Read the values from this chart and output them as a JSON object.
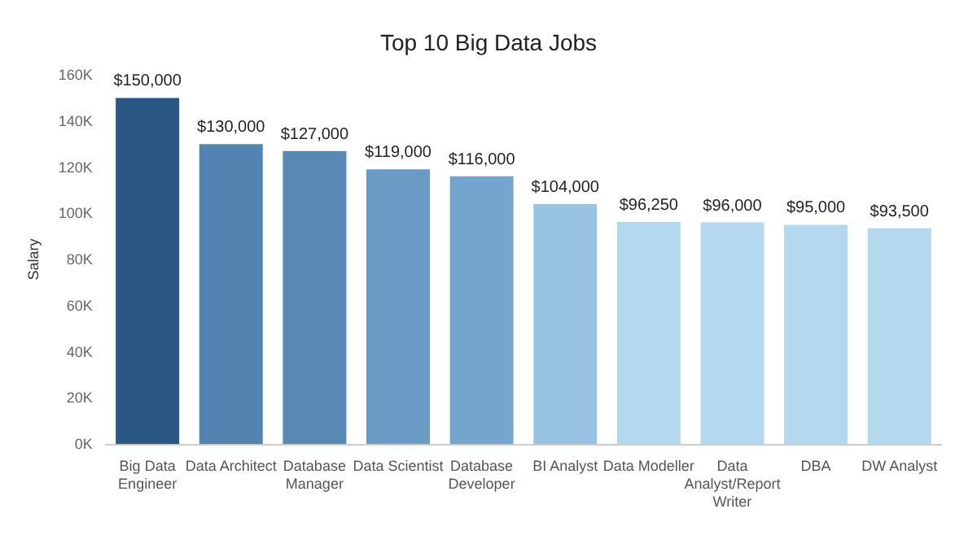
{
  "chart_data": {
    "type": "bar",
    "title": "Top 10 Big Data Jobs",
    "ylabel": "Salary",
    "categories": [
      "Big Data\nEngineer",
      "Data Architect",
      "Database\nManager",
      "Data Scientist",
      "Database\nDeveloper",
      "BI Analyst",
      "Data Modeller",
      "Data\nAnalyst/Report\nWriter",
      "DBA",
      "DW Analyst"
    ],
    "values": [
      150000,
      130000,
      127000,
      119000,
      116000,
      104000,
      96250,
      96000,
      95000,
      93500
    ],
    "colors": [
      "#2a5783",
      "#5383b0",
      "#5889b5",
      "#6a9bc5",
      "#73a5cd",
      "#99c3e2",
      "#b4d8ee",
      "#b4d8ee",
      "#b4d8ee",
      "#b4d8ee"
    ],
    "value_labels": [
      "$150,000",
      "$130,000",
      "$127,000",
      "$119,000",
      "$116,000",
      "$104,000",
      "$96,250",
      "$96,000",
      "$95,000",
      "$93,500"
    ],
    "ylim": [
      0,
      160000
    ],
    "yticks": [
      {
        "value": 0,
        "label": "0K"
      },
      {
        "value": 20000,
        "label": "20K"
      },
      {
        "value": 40000,
        "label": "40K"
      },
      {
        "value": 60000,
        "label": "60K"
      },
      {
        "value": 80000,
        "label": "80K"
      },
      {
        "value": 100000,
        "label": "100K"
      },
      {
        "value": 120000,
        "label": "120K"
      },
      {
        "value": 140000,
        "label": "140K"
      },
      {
        "value": 160000,
        "label": "160K"
      }
    ],
    "grid": false
  }
}
